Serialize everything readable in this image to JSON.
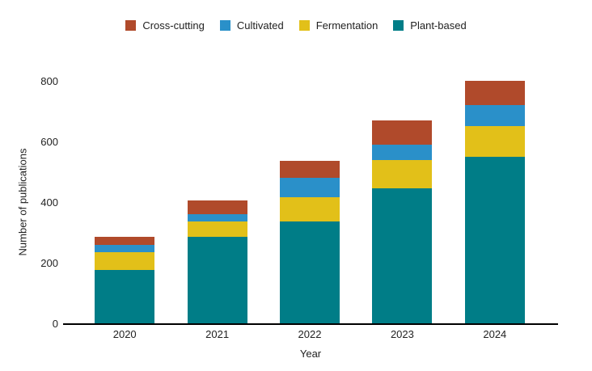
{
  "chart_data": {
    "type": "bar",
    "stacked": true,
    "orientation": "vertical",
    "categories": [
      "2020",
      "2021",
      "2022",
      "2023",
      "2024"
    ],
    "series": [
      {
        "name": "Cross-cutting",
        "color": "#b04a2b",
        "values": [
          25,
          45,
          55,
          80,
          80
        ]
      },
      {
        "name": "Cultivated",
        "color": "#2a90c9",
        "values": [
          25,
          25,
          65,
          50,
          70
        ]
      },
      {
        "name": "Fermentation",
        "color": "#e2c019",
        "values": [
          60,
          50,
          80,
          95,
          100
        ]
      },
      {
        "name": "Plant-based",
        "color": "#007d87",
        "values": [
          175,
          285,
          335,
          445,
          550
        ]
      }
    ],
    "stack_order_top_to_bottom": [
      "Cross-cutting",
      "Cultivated",
      "Fermentation",
      "Plant-based"
    ],
    "totals": [
      285,
      405,
      535,
      670,
      800
    ],
    "xlabel": "Year",
    "ylabel": "Number of publications",
    "y_ticks": [
      800,
      600,
      400,
      200,
      0
    ],
    "ylim": [
      0,
      800
    ],
    "grid": false,
    "legend_position": "top",
    "background_color": "#ffffff",
    "axis_line_color": "#000000",
    "text_color": "#222222"
  }
}
